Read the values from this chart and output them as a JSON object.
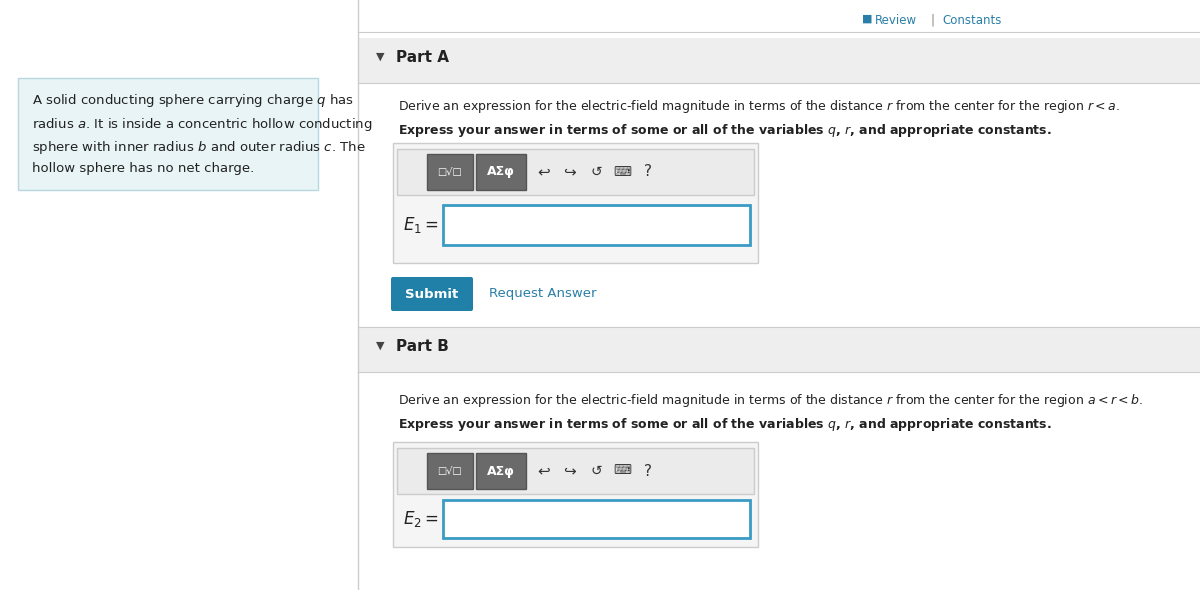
{
  "bg_color": "#ffffff",
  "left_panel_bg": "#e8f4f6",
  "left_panel_border": "#b8d8e0",
  "right_bg": "#ffffff",
  "part_header_bg": "#eeeeee",
  "part_header_border": "#dddddd",
  "toolbar_bg": "#e8e8e8",
  "toolbar_border": "#cccccc",
  "btn_bg": "#6a6a6a",
  "btn_border": "#555555",
  "input_bg": "#ffffff",
  "input_border": "#3a9cc4",
  "outer_box_bg": "#f5f5f5",
  "outer_box_border": "#cccccc",
  "submit_bg": "#2080a8",
  "submit_fg": "#ffffff",
  "link_color": "#2a7fa8",
  "text_color": "#222222",
  "sep_color": "#cccccc",
  "divider_color": "#cccccc",
  "left_text": "A solid conducting sphere carrying charge $q$ has\nradius $a$. It is inside a concentric hollow conducting\nsphere with inner radius $b$ and outer radius $c$. The\nhollow sphere has no net charge.",
  "review_icon_color": "#2a7fa8",
  "arrow_down": "▼",
  "arrow_right": "►",
  "partA_title": "Part A",
  "partB_title": "Part B",
  "partA_desc1": "Derive an expression for the electric-field magnitude in terms of the distance $r$ from the center for the region $r < a$.",
  "partA_desc2": "Express your answer in terms of some or all of the variables $q$, $r$, and appropriate constants.",
  "partB_desc1": "Derive an expression for the electric-field magnitude in terms of the distance $r$ from the center for the region $a < r < b$.",
  "partB_desc2": "Express your answer in terms of some or all of the variables $q$, $r$, and appropriate constants.",
  "E1_label": "$E_1 =$",
  "E2_label": "$E_2 =$",
  "submit_text": "Submit",
  "request_answer_text": "Request Answer"
}
